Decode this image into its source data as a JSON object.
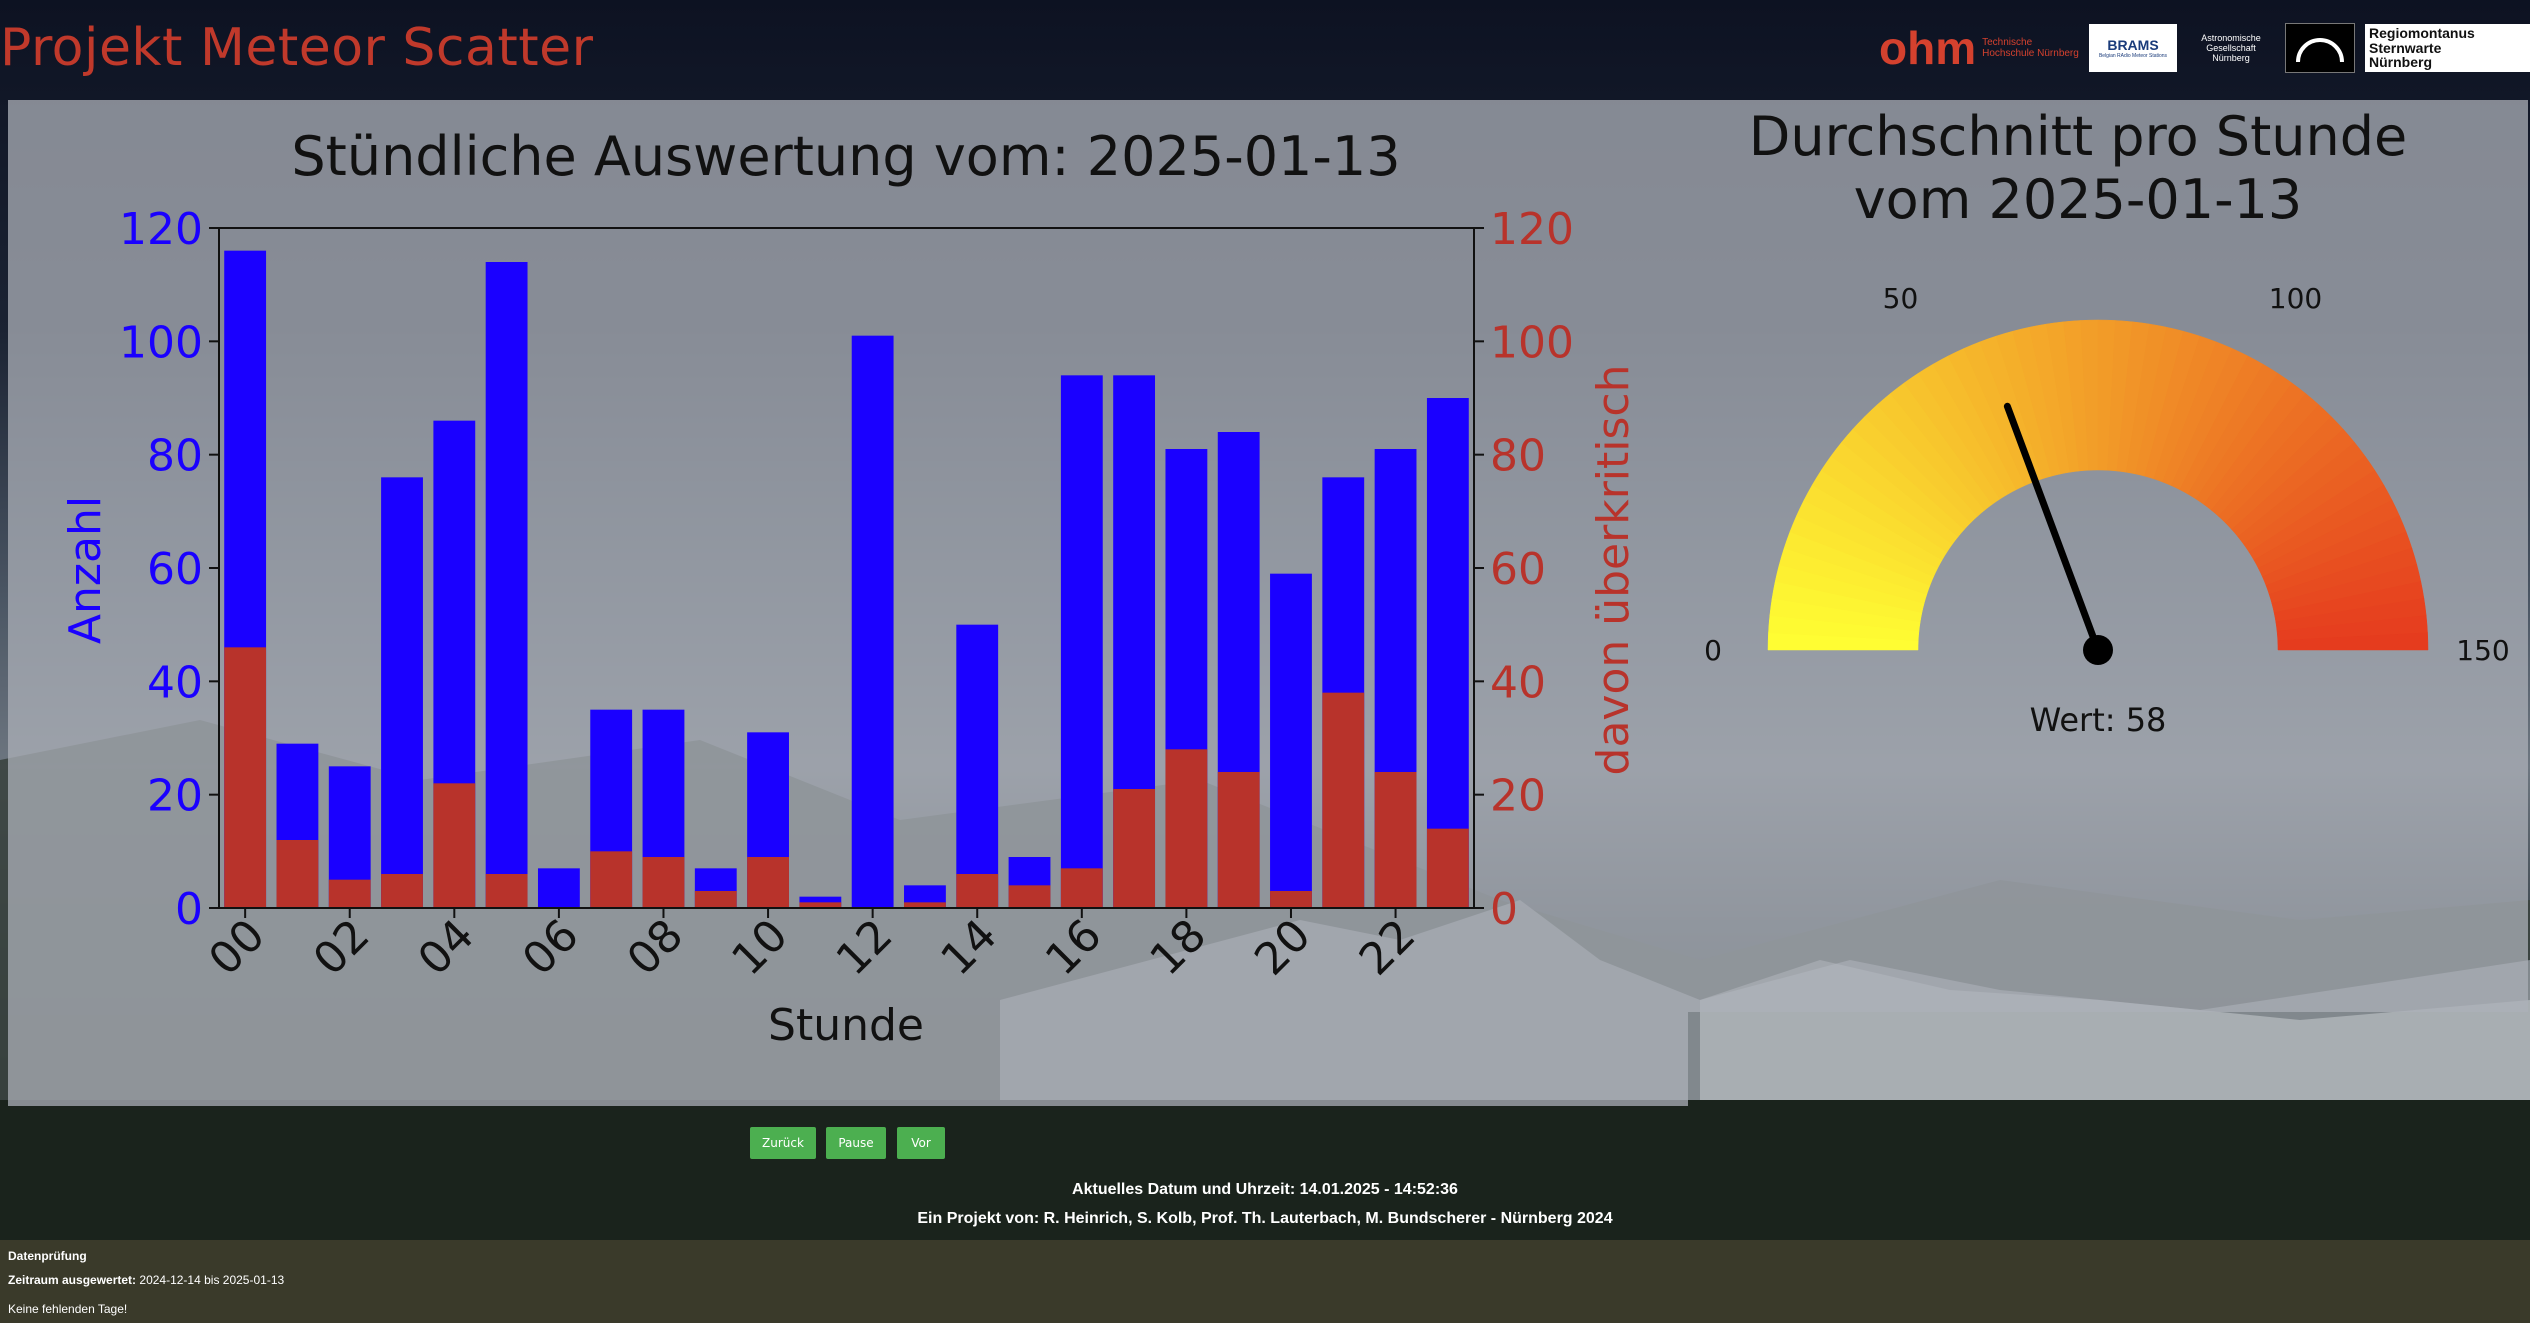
{
  "header": {
    "title": "Projekt Meteor Scatter",
    "logos": {
      "ohm": "ohm",
      "ohm_sub": "Technische Hochschule Nürnberg",
      "brams": "BRAMS",
      "brams_sub": "Belgian RAdio Meteor Stations",
      "agn": "Astronomische Gesellschaft Nürnberg",
      "regiomontanus": "Regiomontanus Sternwarte Nürnberg"
    }
  },
  "chart_data": [
    {
      "type": "bar",
      "title": "Stündliche Auswertung vom: 2025-01-13",
      "xlabel": "Stunde",
      "ylabel": "Anzahl",
      "y2label": "davon überkritisch",
      "ylim": [
        0,
        120
      ],
      "y2lim": [
        0,
        120
      ],
      "yticks": [
        0,
        20,
        40,
        60,
        80,
        100,
        120
      ],
      "categories": [
        "00",
        "01",
        "02",
        "03",
        "04",
        "05",
        "06",
        "07",
        "08",
        "09",
        "10",
        "11",
        "12",
        "13",
        "14",
        "15",
        "16",
        "17",
        "18",
        "19",
        "20",
        "21",
        "22",
        "23"
      ],
      "xtick_labels": [
        "00",
        "02",
        "04",
        "06",
        "08",
        "10",
        "12",
        "14",
        "16",
        "18",
        "20",
        "22"
      ],
      "series": [
        {
          "name": "Anzahl",
          "color": "#1a00ff",
          "values": [
            116,
            29,
            25,
            76,
            86,
            114,
            7,
            35,
            35,
            7,
            31,
            2,
            101,
            4,
            50,
            9,
            94,
            94,
            81,
            84,
            59,
            76,
            81,
            90
          ]
        },
        {
          "name": "davon überkritisch",
          "color": "#b8332b",
          "values": [
            46,
            12,
            5,
            6,
            22,
            6,
            0,
            10,
            9,
            3,
            9,
            1,
            0,
            1,
            6,
            4,
            7,
            21,
            28,
            24,
            3,
            38,
            24,
            14
          ]
        }
      ],
      "grid": false
    },
    {
      "type": "gauge",
      "title_line1": "Durchschnitt pro Stunde",
      "title_line2": "vom 2025-01-13",
      "min": 0,
      "max": 150,
      "tick_labels": [
        "0",
        "50",
        "100",
        "150"
      ],
      "value": 58,
      "value_label": "Wert: 58",
      "color_start": "#ffff33",
      "color_end": "#e53a1e"
    }
  ],
  "controls": {
    "back": "Zurück",
    "pause": "Pause",
    "next": "Vor"
  },
  "footer": {
    "datetime": "Aktuelles Datum und Uhrzeit: 14.01.2025 - 14:52:36",
    "credits": "Ein Projekt von: R. Heinrich, S. Kolb, Prof. Th. Lauterbach, M. Bundscherer - Nürnberg 2024"
  },
  "status": {
    "heading": "Datenprüfung",
    "range_label": "Zeitraum ausgewertet:",
    "range_value": "2024-12-14 bis 2025-01-13",
    "missing": "Keine fehlenden Tage!"
  },
  "colors": {
    "title": "#c0392b",
    "primary_axis": "#1a00ff",
    "secondary_axis": "#b8332b",
    "button": "#4caf50"
  }
}
